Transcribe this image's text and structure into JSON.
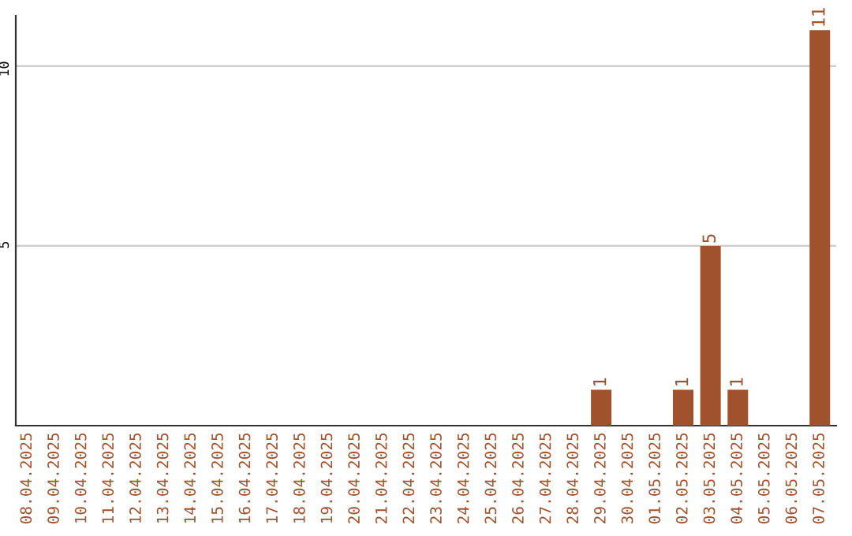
{
  "chart_data": {
    "type": "bar",
    "categories": [
      "08.04.2025",
      "09.04.2025",
      "10.04.2025",
      "11.04.2025",
      "12.04.2025",
      "13.04.2025",
      "14.04.2025",
      "15.04.2025",
      "16.04.2025",
      "17.04.2025",
      "18.04.2025",
      "19.04.2025",
      "20.04.2025",
      "21.04.2025",
      "22.04.2025",
      "23.04.2025",
      "24.04.2025",
      "25.04.2025",
      "26.04.2025",
      "27.04.2025",
      "28.04.2025",
      "29.04.2025",
      "30.04.2025",
      "01.05.2025",
      "02.05.2025",
      "03.05.2025",
      "04.05.2025",
      "05.05.2025",
      "06.05.2025",
      "07.05.2025"
    ],
    "values": [
      0,
      0,
      0,
      0,
      0,
      0,
      0,
      0,
      0,
      0,
      0,
      0,
      0,
      0,
      0,
      0,
      0,
      0,
      0,
      0,
      0,
      1,
      0,
      0,
      1,
      5,
      1,
      0,
      0,
      11
    ],
    "value_labels": [
      null,
      null,
      null,
      null,
      null,
      null,
      null,
      null,
      null,
      null,
      null,
      null,
      null,
      null,
      null,
      null,
      null,
      null,
      null,
      null,
      null,
      "1",
      null,
      null,
      "1",
      "5",
      "1",
      null,
      null,
      "11"
    ],
    "color": "#a0522d",
    "ylim": [
      0,
      11.4
    ],
    "yticks": [
      5,
      10
    ],
    "grid": "y",
    "legend": false
  }
}
